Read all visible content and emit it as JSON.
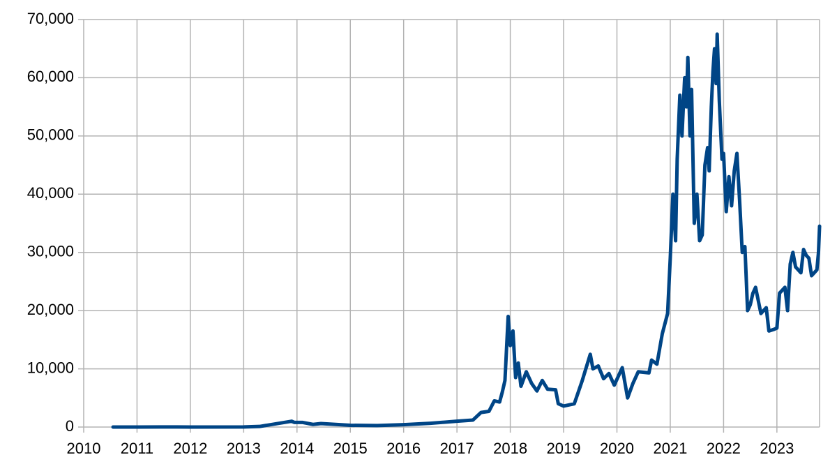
{
  "chart_data": {
    "type": "line",
    "x": [
      2010.55,
      2011.0,
      2011.45,
      2012.0,
      2013.0,
      2013.3,
      2013.9,
      2013.95,
      2014.1,
      2014.3,
      2014.45,
      2015.0,
      2015.5,
      2016.0,
      2016.5,
      2017.0,
      2017.3,
      2017.45,
      2017.6,
      2017.7,
      2017.8,
      2017.85,
      2017.9,
      2017.96,
      2018.0,
      2018.05,
      2018.1,
      2018.15,
      2018.2,
      2018.3,
      2018.4,
      2018.5,
      2018.6,
      2018.7,
      2018.85,
      2018.9,
      2019.0,
      2019.2,
      2019.35,
      2019.5,
      2019.55,
      2019.65,
      2019.75,
      2019.85,
      2019.95,
      2020.1,
      2020.2,
      2020.3,
      2020.4,
      2020.6,
      2020.65,
      2020.75,
      2020.85,
      2020.95,
      2021.0,
      2021.05,
      2021.1,
      2021.13,
      2021.18,
      2021.22,
      2021.27,
      2021.3,
      2021.33,
      2021.37,
      2021.4,
      2021.45,
      2021.5,
      2021.55,
      2021.6,
      2021.65,
      2021.7,
      2021.73,
      2021.77,
      2021.8,
      2021.83,
      2021.86,
      2021.88,
      2021.92,
      2021.97,
      2022.0,
      2022.05,
      2022.1,
      2022.15,
      2022.2,
      2022.25,
      2022.3,
      2022.35,
      2022.4,
      2022.45,
      2022.5,
      2022.55,
      2022.6,
      2022.7,
      2022.8,
      2022.85,
      2022.95,
      2023.0,
      2023.05,
      2023.15,
      2023.2,
      2023.25,
      2023.3,
      2023.35,
      2023.45,
      2023.5,
      2023.55,
      2023.6,
      2023.65,
      2023.7,
      2023.75,
      2023.78,
      2023.8
    ],
    "series": [
      {
        "color": "#004586",
        "values": [
          0.07,
          0.3,
          15,
          5,
          13,
          100,
          1000,
          800,
          800,
          450,
          600,
          300,
          250,
          400,
          650,
          1000,
          1200,
          2500,
          2700,
          4500,
          4300,
          6000,
          8000,
          19000,
          14000,
          16500,
          8500,
          11000,
          7000,
          9500,
          7500,
          6200,
          8000,
          6500,
          6400,
          4000,
          3600,
          4000,
          8000,
          12500,
          10000,
          10500,
          8300,
          9200,
          7200,
          10200,
          5000,
          7500,
          9500,
          9300,
          11500,
          10800,
          16000,
          19500,
          29000,
          40000,
          32000,
          46000,
          57000,
          50000,
          60000,
          55000,
          63500,
          50000,
          58000,
          35000,
          40000,
          32000,
          33000,
          45000,
          48000,
          44000,
          55000,
          61000,
          65000,
          59000,
          67500,
          56000,
          46000,
          47000,
          37000,
          43000,
          38000,
          44000,
          47000,
          39000,
          30000,
          31000,
          20000,
          21000,
          23000,
          24000,
          19500,
          20500,
          16500,
          16800,
          17000,
          23000,
          24000,
          20000,
          28000,
          30000,
          27500,
          26500,
          30500,
          29500,
          29000,
          26000,
          26500,
          27000,
          30000,
          34500
        ]
      }
    ],
    "xlim": [
      2010,
      2023.8
    ],
    "xticks": [
      2010,
      2011,
      2012,
      2013,
      2014,
      2015,
      2016,
      2017,
      2018,
      2019,
      2020,
      2021,
      2022,
      2023
    ],
    "ylim": [
      0,
      70000
    ],
    "yticks": [
      0,
      {
        "value": 10000,
        "label": "10,000"
      },
      {
        "value": 20000,
        "label": "20,000"
      },
      {
        "value": 30000,
        "label": "30,000"
      },
      {
        "value": 40000,
        "label": "40,000"
      },
      {
        "value": 50000,
        "label": "50,000"
      },
      {
        "value": 60000,
        "label": "60,000"
      },
      {
        "value": 70000,
        "label": "70,000"
      }
    ],
    "grid": true
  }
}
